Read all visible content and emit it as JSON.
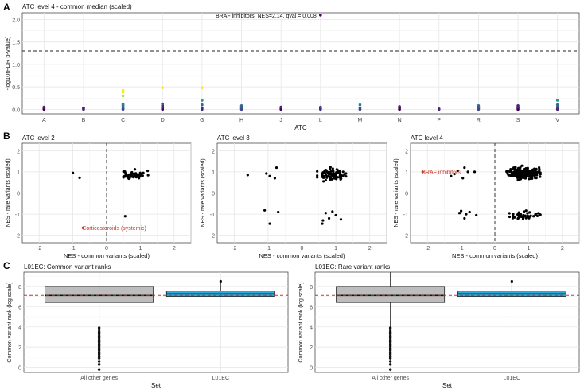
{
  "figure": {
    "panel_letters": [
      "A",
      "B",
      "C"
    ]
  },
  "colors": {
    "grid_major": "#e6e6e6",
    "grid_minor": "#f2f2f2",
    "axis_text": "#4d4d4d",
    "box_other": "#bdbdbd",
    "box_l01ec": "#29a9dc",
    "ref_line_red": "#c0392b",
    "label_red": "#c0392b",
    "point_black": "#000000",
    "viridis": [
      "#440154",
      "#482878",
      "#3e4989",
      "#31688e",
      "#26828e",
      "#1f9e89",
      "#35b779",
      "#6ece58",
      "#b5de2b",
      "#fde725"
    ]
  },
  "chart_data": [
    {
      "id": "A",
      "type": "scatter",
      "title": "ATC level 4 - common median (scaled)",
      "xlabel": "ATC",
      "ylabel": "-log10(FDR p-value)",
      "categories": [
        "A",
        "B",
        "C",
        "D",
        "G",
        "H",
        "J",
        "L",
        "M",
        "N",
        "P",
        "R",
        "S",
        "V"
      ],
      "yticks": [
        "0.0",
        "0.5",
        "1.0",
        "1.5",
        "2.0"
      ],
      "ylim": [
        -0.1,
        2.15
      ],
      "threshold": 1.3,
      "annotation": "BRAF inhibitors: NES=2.14, qval = 0.008",
      "annotation_point": {
        "category": "L",
        "y": 2.1
      },
      "points": {
        "A": [
          0.0,
          0.01,
          0.02,
          0.03,
          0.04,
          0.05
        ],
        "B": [
          0.0,
          0.02,
          0.03
        ],
        "C": [
          0.0,
          0.02,
          0.05,
          0.08,
          0.1,
          0.12,
          0.3,
          0.38,
          0.42
        ],
        "D": [
          0.0,
          0.03,
          0.05,
          0.08,
          0.12,
          0.48
        ],
        "G": [
          0.0,
          0.03,
          0.1,
          0.2,
          0.48
        ],
        "H": [
          0.0,
          0.02,
          0.05,
          0.08
        ],
        "J": [
          0.0,
          0.02,
          0.05
        ],
        "L": [
          0.0,
          0.02,
          0.03,
          0.05
        ],
        "M": [
          0.0,
          0.03,
          0.1
        ],
        "N": [
          0.0,
          0.03,
          0.06
        ],
        "P": [
          0.0,
          0.01
        ],
        "R": [
          0.0,
          0.02,
          0.04,
          0.06,
          0.08
        ],
        "S": [
          0.0,
          0.03,
          0.05,
          0.08
        ],
        "V": [
          0.0,
          0.02,
          0.05,
          0.1,
          0.2
        ]
      }
    },
    {
      "id": "B1",
      "type": "scatter",
      "title": "ATC level 2",
      "xlabel": "NES - common variants (scaled)",
      "ylabel": "NES - rare variants (scaled)",
      "xticks": [
        "-2",
        "-1",
        "0",
        "1",
        "2"
      ],
      "yticks": [
        "-2",
        "-1",
        "0",
        "1",
        "2"
      ],
      "xlim": [
        -2.5,
        2.5
      ],
      "ylim": [
        -2.35,
        2.35
      ],
      "annotation": "Corticosteroids (systemic)",
      "annotation_point": {
        "x": -0.7,
        "y": -1.65
      },
      "fixed_points": [
        [
          -1.0,
          0.95
        ],
        [
          -0.8,
          0.72
        ],
        [
          0.55,
          -1.1
        ]
      ],
      "cluster": {
        "n": 60,
        "cx": 0.8,
        "cy": 0.85,
        "sx": 0.18,
        "sy": 0.1,
        "xmin": 0.5,
        "xmax": 1.3,
        "ymin": 0.65,
        "ymax": 1.12
      }
    },
    {
      "id": "B2",
      "type": "scatter",
      "title": "ATC level 3",
      "xlabel": "NES - common variants (scaled)",
      "ylabel": "NES - rare variants (scaled)",
      "xticks": [
        "-2",
        "-1",
        "0",
        "1",
        "2"
      ],
      "yticks": [
        "-2",
        "-1",
        "0",
        "1",
        "2"
      ],
      "xlim": [
        -2.5,
        2.5
      ],
      "ylim": [
        -2.35,
        2.35
      ],
      "fixed_points": [
        [
          -1.6,
          0.85
        ],
        [
          -1.05,
          0.92
        ],
        [
          -0.95,
          0.8
        ],
        [
          -0.75,
          1.2
        ],
        [
          -0.8,
          0.7
        ],
        [
          -1.1,
          -0.82
        ],
        [
          -0.95,
          -1.45
        ],
        [
          -0.7,
          -0.9
        ],
        [
          0.6,
          -1.45
        ],
        [
          0.62,
          -1.3
        ],
        [
          0.8,
          -1.2
        ],
        [
          1.0,
          -1.05
        ],
        [
          1.15,
          -1.25
        ],
        [
          0.7,
          -0.95
        ],
        [
          0.9,
          -0.88
        ]
      ],
      "cluster": {
        "n": 90,
        "cx": 0.85,
        "cy": 0.85,
        "sx": 0.2,
        "sy": 0.12,
        "xmin": 0.45,
        "xmax": 1.3,
        "ymin": 0.55,
        "ymax": 1.25
      }
    },
    {
      "id": "B3",
      "type": "scatter",
      "title": "ATC level 4",
      "xlabel": "NES - common variants (scaled)",
      "ylabel": "NES - rare variants (scaled)",
      "xticks": [
        "-2",
        "-1",
        "0",
        "1",
        "2"
      ],
      "yticks": [
        "-2",
        "-1",
        "0",
        "1",
        "2"
      ],
      "xlim": [
        -2.5,
        2.5
      ],
      "ylim": [
        -2.35,
        2.35
      ],
      "annotation": "BRAF inhibitors",
      "annotation_point": {
        "x": -2.14,
        "y": 1.0
      },
      "fixed_points": [
        [
          -1.3,
          0.8
        ],
        [
          -1.1,
          1.05
        ],
        [
          -0.9,
          1.2
        ],
        [
          -0.8,
          1.0
        ],
        [
          -0.95,
          0.7
        ],
        [
          -0.6,
          1.0
        ],
        [
          -1.2,
          0.9
        ],
        [
          -1.0,
          -0.85
        ],
        [
          -0.85,
          -1.0
        ],
        [
          -0.75,
          -0.9
        ],
        [
          -0.55,
          -1.05
        ],
        [
          -0.9,
          -1.2
        ],
        [
          -1.05,
          -0.95
        ]
      ],
      "cluster": {
        "n": 200,
        "cx": 0.85,
        "cy": 0.95,
        "sx": 0.22,
        "sy": 0.14,
        "xmin": 0.35,
        "xmax": 1.35,
        "ymin": 0.6,
        "ymax": 1.35
      },
      "cluster2": {
        "n": 45,
        "cx": 0.85,
        "cy": -1.05,
        "sx": 0.22,
        "sy": 0.1,
        "xmin": 0.4,
        "xmax": 1.35,
        "ymin": -1.3,
        "ymax": -0.75
      }
    },
    {
      "id": "C1",
      "type": "box",
      "title": "L01EC: Common variant ranks",
      "xlabel": "Set",
      "ylabel": "Common variant rank (log scale)",
      "categories": [
        "All other genes",
        "L01EC"
      ],
      "yticks": [
        "0",
        "2",
        "4",
        "6",
        "8"
      ],
      "ylim": [
        -0.5,
        9.4
      ],
      "ref_line": 7.1,
      "boxes": [
        {
          "q1": 6.4,
          "median": 7.1,
          "q3": 8.0,
          "lo": 4.0,
          "hi": 9.5
        },
        {
          "q1": 7.0,
          "median": 7.25,
          "q3": 7.55,
          "lo": 7.0,
          "hi": 8.5
        }
      ],
      "outliers": [
        3.9,
        3.7,
        3.5,
        3.3,
        3.1,
        2.9,
        2.7,
        2.5,
        2.3,
        2.1,
        1.9,
        1.7,
        1.5,
        1.3,
        1.1,
        0.9,
        0.6,
        0.3,
        -0.2
      ]
    },
    {
      "id": "C2",
      "type": "box",
      "title": "L01EC: Rare variant ranks",
      "xlabel": "Set",
      "ylabel": "Common variant rank (log scale)",
      "categories": [
        "All other genes",
        "L01EC"
      ],
      "yticks": [
        "0",
        "2",
        "4",
        "6",
        "8"
      ],
      "ylim": [
        -0.5,
        9.4
      ],
      "ref_line": 7.1,
      "boxes": [
        {
          "q1": 6.4,
          "median": 7.1,
          "q3": 8.0,
          "lo": 4.0,
          "hi": 9.5
        },
        {
          "q1": 7.0,
          "median": 7.25,
          "q3": 7.55,
          "lo": 7.0,
          "hi": 8.5
        }
      ],
      "outliers": [
        3.9,
        3.7,
        3.5,
        3.3,
        3.1,
        2.9,
        2.7,
        2.5,
        2.3,
        2.1,
        1.9,
        1.7,
        1.5,
        1.3,
        1.1,
        0.9,
        0.6,
        0.3,
        -0.2
      ]
    }
  ]
}
